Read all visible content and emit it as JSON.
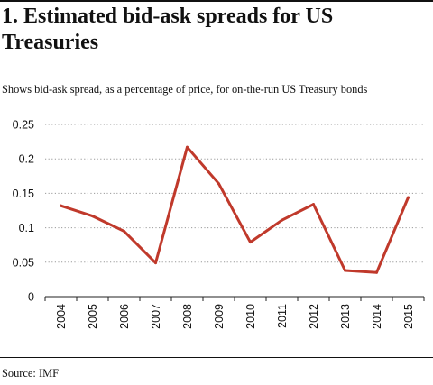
{
  "title": "1. Estimated bid-ask spreads for US Treasuries",
  "subtitle": "Shows bid-ask spread, as a percentage of price, for on-the-run US Treasury bonds",
  "source": "Source: IMF",
  "chart_data": {
    "type": "line",
    "x": [
      "2004",
      "2005",
      "2006",
      "2007",
      "2008",
      "2009",
      "2010",
      "2011",
      "2012",
      "2013",
      "2014",
      "2015"
    ],
    "series": [
      {
        "values": [
          0.132,
          0.117,
          0.095,
          0.049,
          0.217,
          0.164,
          0.079,
          0.111,
          0.134,
          0.038,
          0.035,
          0.144
        ],
        "color": "#c0392b"
      }
    ],
    "yticks": [
      "0.25",
      "0.2",
      "0.15",
      "0.1",
      "0.05",
      "0"
    ],
    "ylim": [
      0,
      0.25
    ],
    "grid": "horizontal-dotted",
    "xlabel": "",
    "ylabel": ""
  }
}
